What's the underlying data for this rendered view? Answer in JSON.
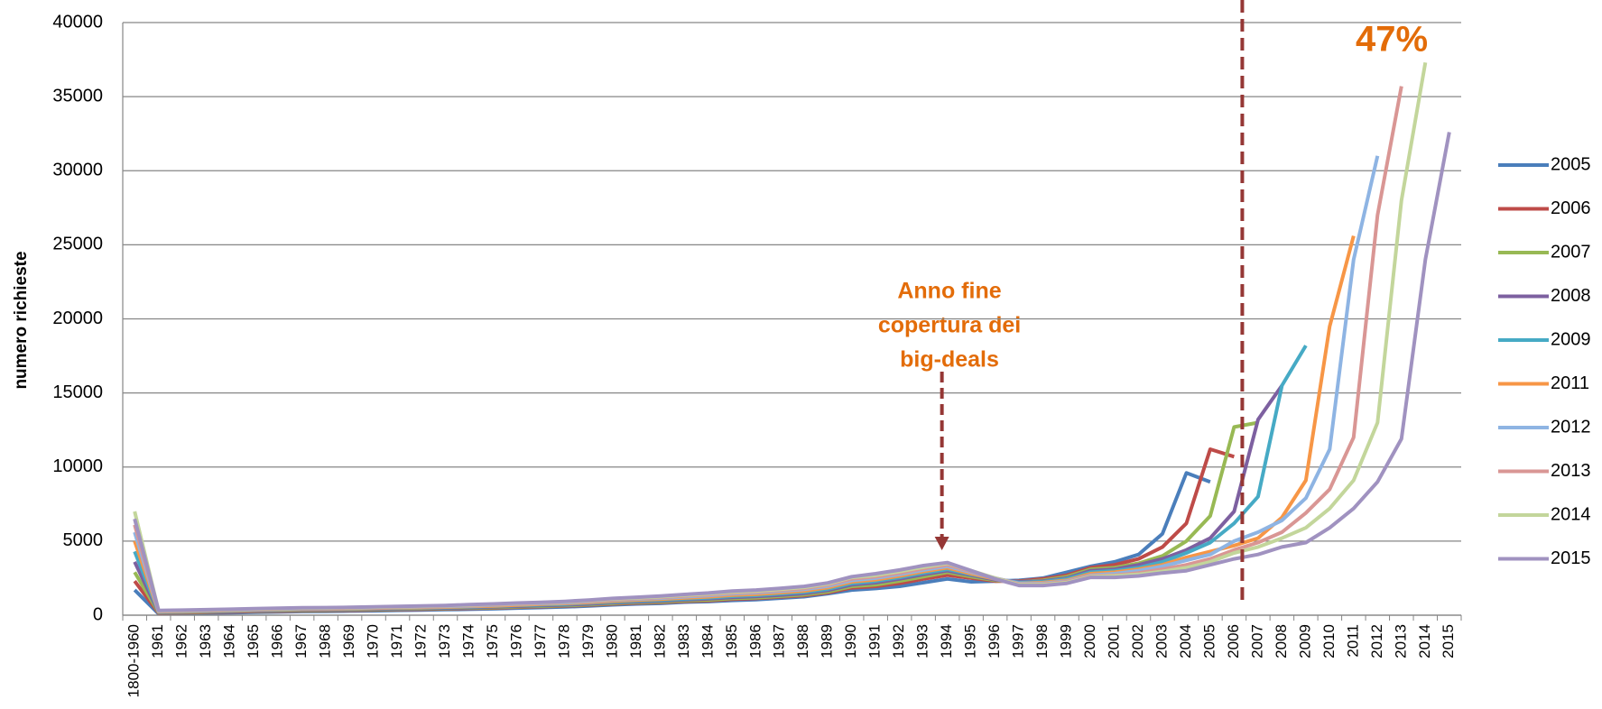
{
  "chart_data": {
    "type": "line",
    "y_label": "numero richieste",
    "annotations": {
      "percent": "47%",
      "big_deals": [
        "Anno fine",
        "copertura  dei",
        "big-deals"
      ]
    },
    "categories": [
      "1800-1960",
      "1961",
      "1962",
      "1963",
      "1964",
      "1965",
      "1966",
      "1967",
      "1968",
      "1969",
      "1970",
      "1971",
      "1972",
      "1973",
      "1974",
      "1975",
      "1976",
      "1977",
      "1978",
      "1979",
      "1980",
      "1981",
      "1982",
      "1983",
      "1984",
      "1985",
      "1986",
      "1987",
      "1988",
      "1989",
      "1990",
      "1991",
      "1992",
      "1993",
      "1994",
      "1995",
      "1996",
      "1997",
      "1998",
      "1999",
      "2000",
      "2001",
      "2002",
      "2003",
      "2004",
      "2005",
      "2006",
      "2007",
      "2008",
      "2009",
      "2010",
      "2011",
      "2012",
      "2013",
      "2014",
      "2015"
    ],
    "ylim": [
      0,
      40000
    ],
    "yticks": [
      0,
      5000,
      10000,
      15000,
      20000,
      25000,
      30000,
      35000,
      40000
    ],
    "grid": true,
    "legend": "right",
    "series": [
      {
        "name": "2005",
        "color": "#4a7ebb",
        "values": [
          1700,
          100,
          120,
          150,
          170,
          200,
          220,
          250,
          260,
          280,
          300,
          330,
          350,
          380,
          400,
          430,
          480,
          520,
          560,
          620,
          700,
          760,
          800,
          880,
          920,
          1000,
          1050,
          1150,
          1250,
          1450,
          1700,
          1800,
          1950,
          2200,
          2450,
          2250,
          2300,
          2350,
          2500,
          2900,
          3300,
          3600,
          4100,
          5500,
          9600,
          9000,
          null,
          null,
          null,
          null,
          null,
          null,
          null,
          null,
          null,
          null
        ]
      },
      {
        "name": "2006",
        "color": "#be4b48",
        "values": [
          2300,
          150,
          170,
          200,
          220,
          250,
          270,
          300,
          310,
          330,
          360,
          380,
          400,
          430,
          460,
          490,
          540,
          580,
          620,
          680,
          760,
          820,
          860,
          940,
          980,
          1080,
          1130,
          1230,
          1330,
          1520,
          1850,
          1950,
          2150,
          2450,
          2700,
          2500,
          2300,
          2300,
          2450,
          2700,
          3200,
          3400,
          3800,
          4600,
          6200,
          11200,
          10700,
          null,
          null,
          null,
          null,
          null,
          null,
          null,
          null,
          null
        ]
      },
      {
        "name": "2007",
        "color": "#98b954",
        "values": [
          2900,
          180,
          200,
          230,
          250,
          280,
          300,
          330,
          340,
          360,
          390,
          410,
          430,
          460,
          490,
          520,
          570,
          610,
          650,
          710,
          800,
          860,
          900,
          980,
          1030,
          1130,
          1180,
          1280,
          1380,
          1580,
          1950,
          2050,
          2300,
          2600,
          2900,
          2600,
          2350,
          2250,
          2350,
          2600,
          3100,
          3200,
          3500,
          4000,
          5000,
          6700,
          12700,
          13000,
          null,
          null,
          null,
          null,
          null,
          null,
          null,
          null
        ]
      },
      {
        "name": "2008",
        "color": "#7d60a0",
        "values": [
          3600,
          200,
          220,
          250,
          270,
          300,
          330,
          360,
          370,
          390,
          420,
          440,
          460,
          490,
          520,
          560,
          610,
          650,
          700,
          760,
          850,
          910,
          960,
          1040,
          1100,
          1200,
          1260,
          1360,
          1470,
          1680,
          2050,
          2200,
          2450,
          2750,
          3000,
          2700,
          2400,
          2250,
          2300,
          2500,
          3000,
          3100,
          3400,
          3800,
          4400,
          5200,
          7000,
          13200,
          15500,
          null,
          null,
          null,
          null,
          null,
          null,
          null
        ]
      },
      {
        "name": "2009",
        "color": "#46aac5",
        "values": [
          4300,
          220,
          240,
          270,
          300,
          330,
          360,
          390,
          400,
          420,
          450,
          470,
          490,
          520,
          560,
          600,
          650,
          700,
          750,
          820,
          900,
          970,
          1020,
          1100,
          1170,
          1280,
          1340,
          1440,
          1550,
          1760,
          2150,
          2300,
          2550,
          2850,
          3100,
          2750,
          2450,
          2200,
          2250,
          2450,
          2900,
          3000,
          3200,
          3600,
          4200,
          4900,
          6200,
          8000,
          15500,
          18200,
          null,
          null,
          null,
          null,
          null,
          null
        ]
      },
      {
        "name": "2011",
        "color": "#f79646",
        "values": [
          5000,
          240,
          260,
          290,
          320,
          350,
          380,
          410,
          420,
          440,
          470,
          500,
          520,
          550,
          590,
          630,
          690,
          740,
          790,
          860,
          950,
          1020,
          1080,
          1160,
          1240,
          1350,
          1420,
          1520,
          1640,
          1860,
          2250,
          2400,
          2650,
          2950,
          3200,
          2800,
          2450,
          2150,
          2200,
          2350,
          2800,
          2900,
          3100,
          3400,
          3900,
          4300,
          4700,
          5200,
          6600,
          9100,
          19500,
          25600,
          null,
          null,
          null,
          null
        ]
      },
      {
        "name": "2012",
        "color": "#8eb4e3",
        "values": [
          5600,
          260,
          280,
          310,
          340,
          380,
          410,
          440,
          450,
          470,
          500,
          530,
          560,
          590,
          630,
          680,
          740,
          790,
          840,
          920,
          1020,
          1090,
          1150,
          1240,
          1330,
          1450,
          1520,
          1620,
          1740,
          1960,
          2350,
          2500,
          2750,
          3050,
          3300,
          2900,
          2500,
          2150,
          2150,
          2300,
          2700,
          2800,
          3000,
          3300,
          3700,
          4100,
          5000,
          5600,
          6400,
          7900,
          11200,
          24000,
          31000,
          null,
          null,
          null
        ]
      },
      {
        "name": "2013",
        "color": "#d99694",
        "values": [
          6100,
          280,
          300,
          330,
          360,
          400,
          430,
          460,
          470,
          490,
          520,
          550,
          580,
          620,
          660,
          710,
          770,
          820,
          880,
          960,
          1060,
          1130,
          1200,
          1300,
          1390,
          1510,
          1580,
          1690,
          1810,
          2050,
          2450,
          2600,
          2850,
          3150,
          3400,
          2950,
          2500,
          2100,
          2100,
          2250,
          2650,
          2700,
          2850,
          3100,
          3400,
          3800,
          4400,
          4900,
          5600,
          6900,
          8500,
          12000,
          27000,
          35700,
          null,
          null
        ]
      },
      {
        "name": "2014",
        "color": "#c3d69b",
        "values": [
          7000,
          300,
          320,
          350,
          380,
          420,
          450,
          480,
          490,
          510,
          540,
          570,
          600,
          640,
          690,
          740,
          800,
          850,
          910,
          1000,
          1100,
          1170,
          1250,
          1350,
          1440,
          1570,
          1640,
          1750,
          1880,
          2120,
          2550,
          2700,
          2950,
          3250,
          3500,
          3000,
          2500,
          2050,
          2050,
          2200,
          2600,
          2650,
          2750,
          2950,
          3200,
          3600,
          4200,
          4600,
          5200,
          5900,
          7200,
          9100,
          13000,
          28000,
          37300,
          null
        ]
      },
      {
        "name": "2015",
        "color": "#a092c0",
        "values": [
          6500,
          320,
          340,
          370,
          400,
          440,
          470,
          500,
          510,
          530,
          560,
          590,
          620,
          660,
          710,
          760,
          820,
          870,
          930,
          1020,
          1130,
          1210,
          1290,
          1400,
          1500,
          1630,
          1700,
          1810,
          1940,
          2180,
          2600,
          2800,
          3050,
          3350,
          3550,
          3000,
          2450,
          2000,
          2000,
          2150,
          2550,
          2550,
          2650,
          2850,
          3000,
          3400,
          3800,
          4100,
          4600,
          4900,
          5900,
          7200,
          9000,
          11900,
          24000,
          32600
        ]
      }
    ]
  }
}
